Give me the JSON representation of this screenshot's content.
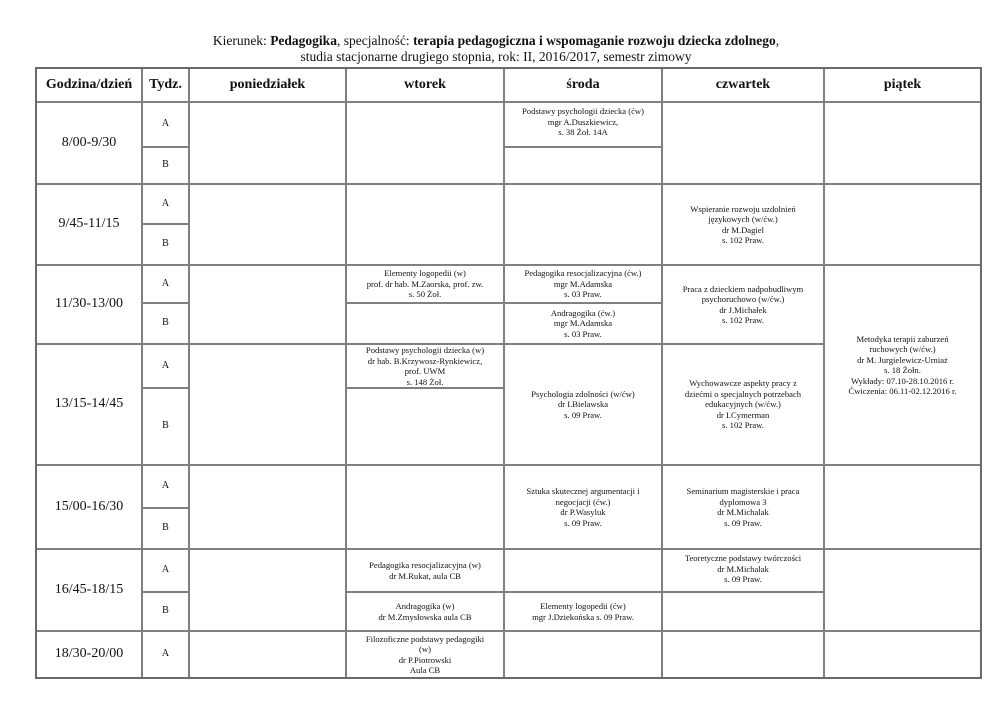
{
  "title": {
    "kierunek_label": "Kierunek: ",
    "kierunek": "Pedagogika",
    "spec_label": ", specjalność: ",
    "specjalnosc": "terapia pedagogiczna i wspomaganie rozwoju dziecka zdolnego",
    "comma": ",",
    "line2": "studia stacjonarne drugiego stopnia, rok: II, 2016/2017, semestr zimowy"
  },
  "headers": [
    "Godzina/dzień",
    "Tydz.",
    "poniedziałek",
    "wtorek",
    "środa",
    "czwartek",
    "piątek"
  ],
  "slots": [
    "8/00-9/30",
    "9/45-11/15",
    "11/30-13/00",
    "13/15-14/45",
    "15/00-16/30",
    "16/45-18/15",
    "18/30-20/00"
  ],
  "weeks": {
    "a": "A",
    "b": "B"
  },
  "classes": {
    "wt_1130A": "Elementy logopedii (w)\nprof. dr hab. M.Zaorska, prof. zw.\ns. 50 Żoł.",
    "wt_1315A": "Podstawy psychologii dziecka (w)\ndr hab. B.Krzywosz-Rynkiewicz,\nprof. UWM\ns. 148 Żoł.",
    "wt_1645A": "Pedagogika resocjalizacyjna (w)\ndr M.Rukat, aula CB",
    "wt_1645B": "Andragogika (w)\ndr M.Zmysłowska aula CB",
    "wt_1830A": "Filozoficzne podstawy pedagogiki\n(w)\ndr P.Piotrowski\nAula CB",
    "sr_0800A": "Podstawy psychologii dziecka (ćw)\nmgr A.Duszkiewicz,\ns. 38 Żoł. 14A",
    "sr_1130A": "Pedagogika resocjalizacyjna (ćw.)\nmgr M.Adamska\ns. 03 Praw.",
    "sr_1130B": "Andragogika (ćw.)\nmgr M.Adamska\ns. 03 Praw.",
    "sr_1315": "Psychologia zdolności (w/ćw)\ndr I.Bielawska\ns. 09 Praw.",
    "sr_1500": "Sztuka skutecznej argumentacji i\nnegocjacji (ćw.)\ndr P.Wasyluk\ns. 09 Praw.",
    "sr_1645B": "Elementy logopedii (ćw)\nmgr J.Dziekońska s. 09 Praw.",
    "cz_0945": "Wspieranie rozwoju uzdolnień\njęzykowych (w/ćw.)\ndr M.Dagiel\ns. 102 Praw.",
    "cz_1130": "Praca z dzieckiem nadpobudliwym\npsychoruchowo (w/ćw.)\ndr J.Michałek\ns. 102 Praw.",
    "cz_1315": "Wychowawcze aspekty pracy z\ndziećmi o specjalnych potrzebach\nedukacyjnych (w/ćw.)\ndr I.Cymerman\ns. 102 Praw.",
    "cz_1500": "Seminarium magisterskie i praca\ndyplomowa 3\ndr M.Michalak\ns. 09 Praw.",
    "cz_1645A": "Teoretyczne podstawy twórczości\ndr M.Michalak\ns. 09 Praw.",
    "pt_1130": "Metodyka terapii zaburzeń\nruchowych  (w/ćw.)\ndr M. Jurgielewicz-Urniaż\ns. 18 Żołn.\nWykłady: 07.10-28.10.2016 r.\nĆwiczenia: 06.11-02.12.2016 r."
  }
}
